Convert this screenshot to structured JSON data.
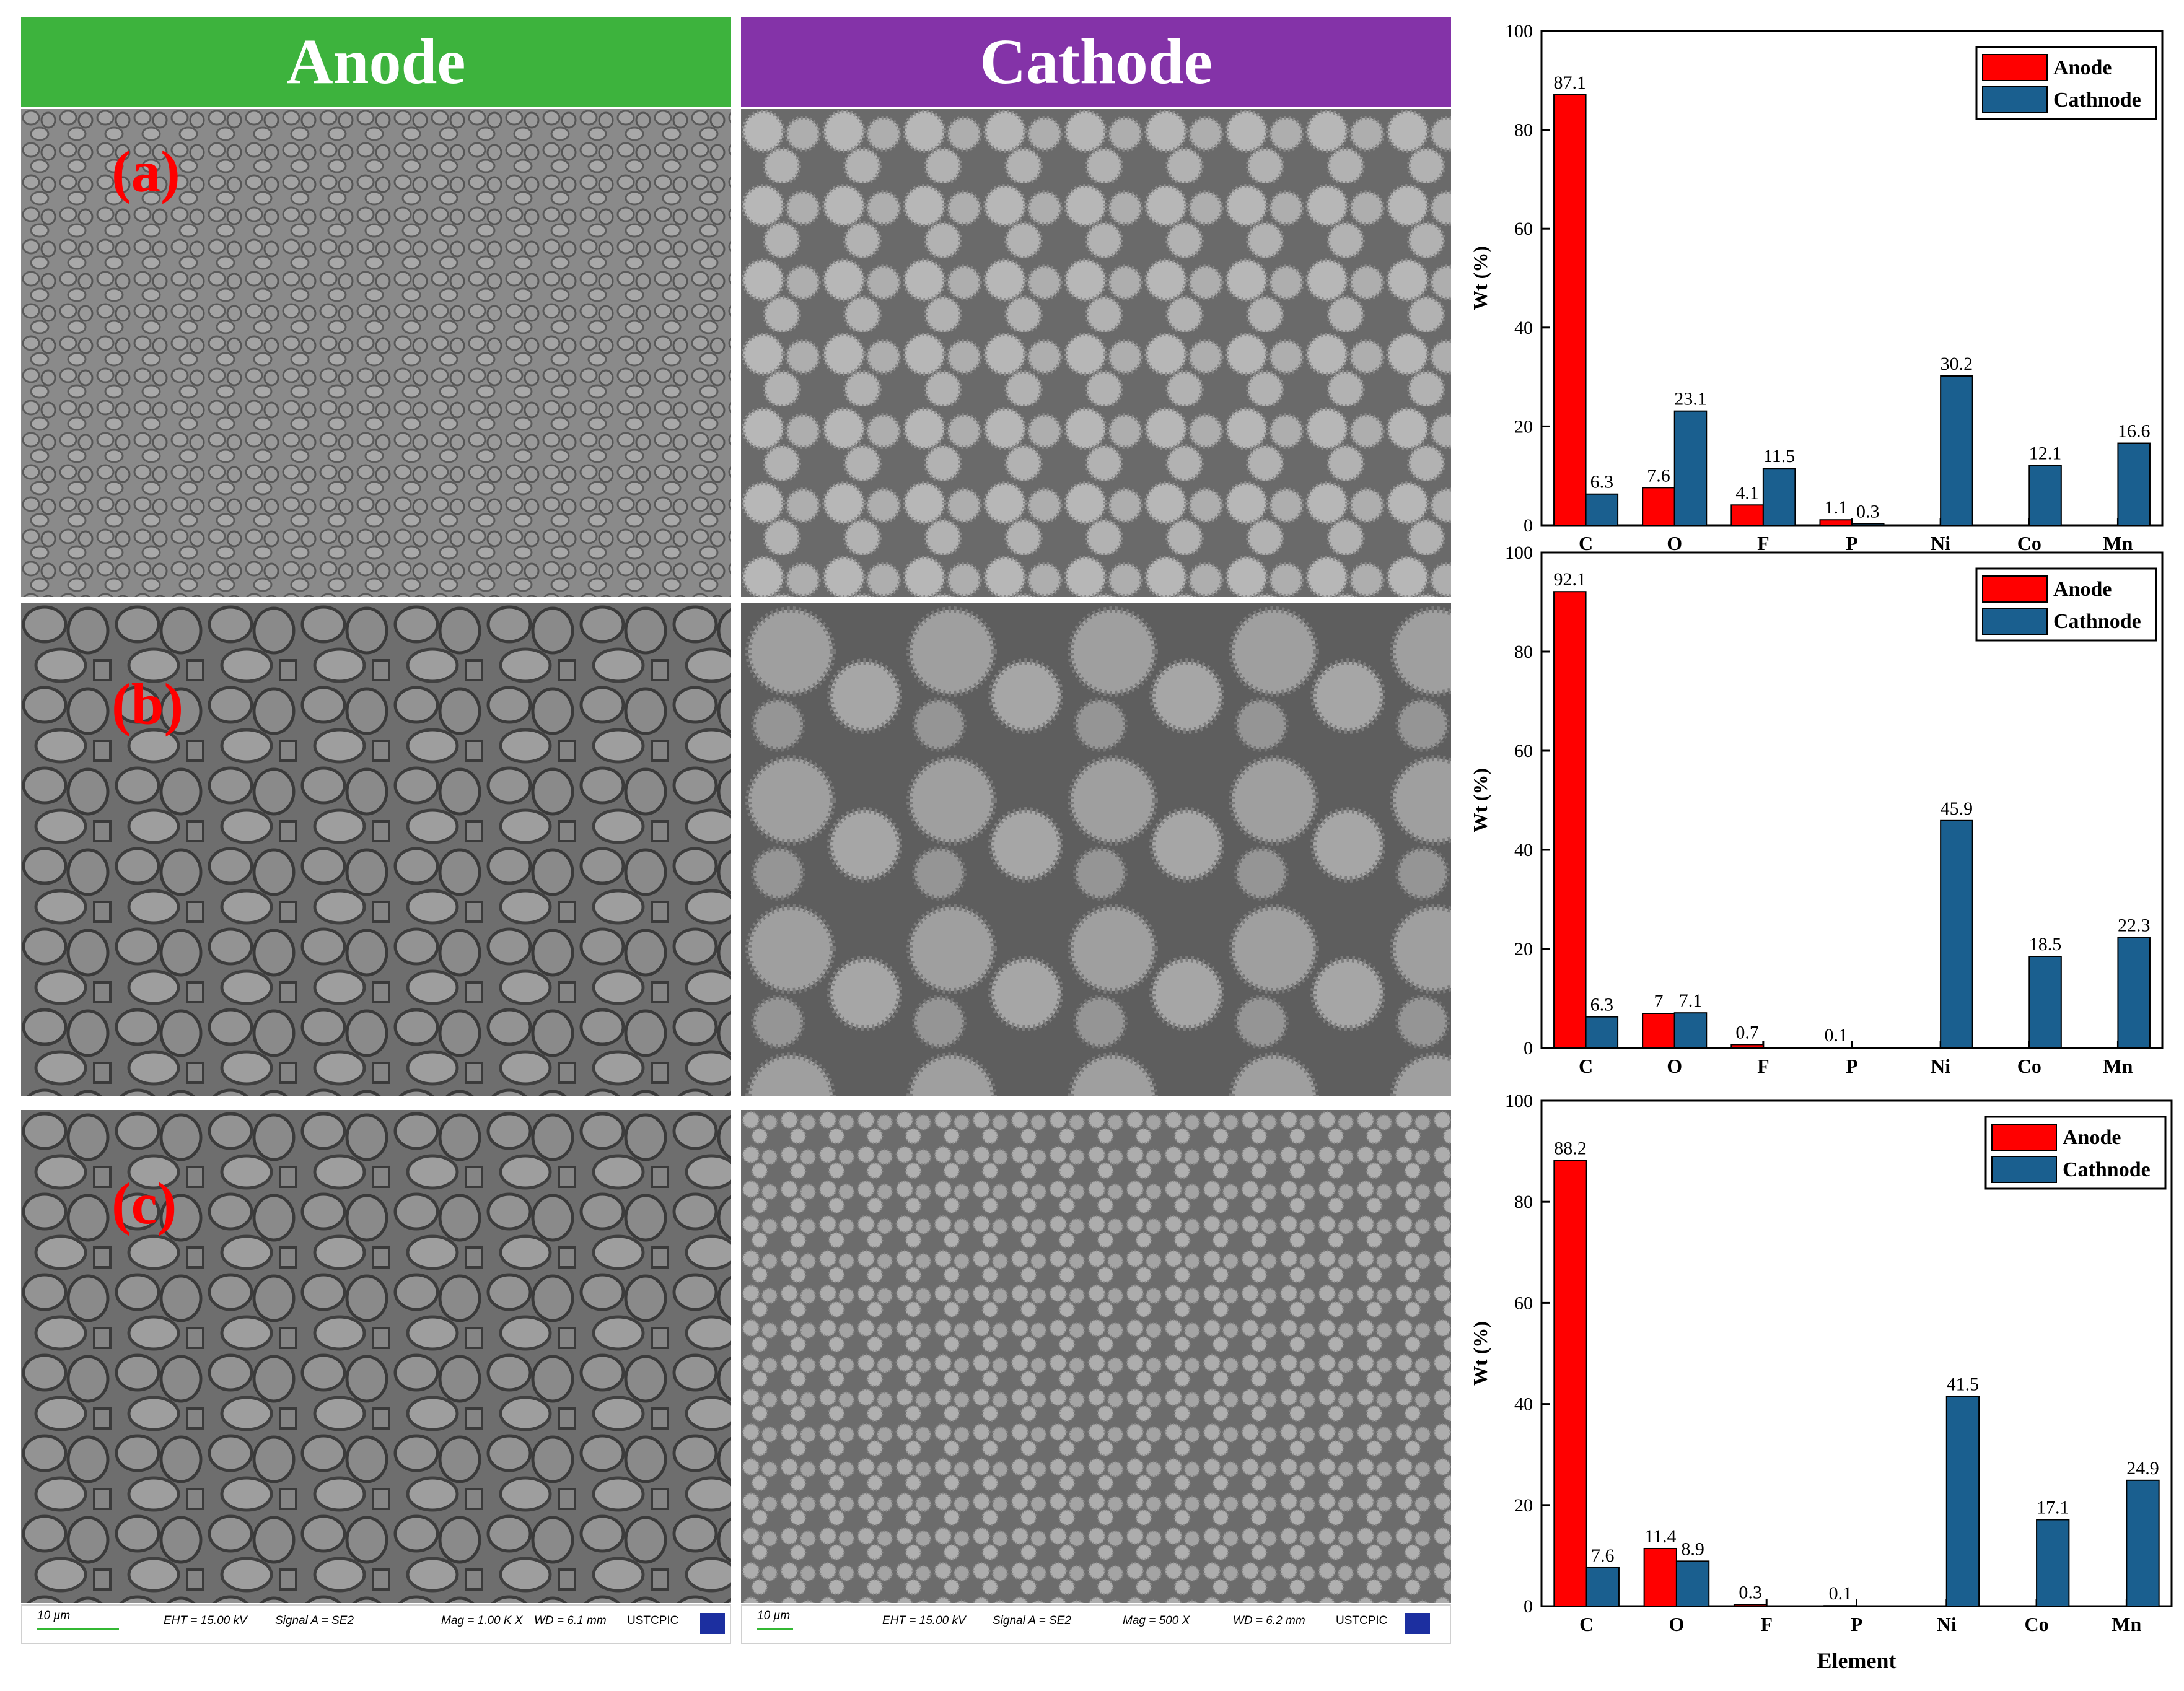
{
  "headers": {
    "anode": {
      "text": "Anode",
      "color": "#3db33d"
    },
    "cathode": {
      "text": "Cathode",
      "color": "#8433a8"
    }
  },
  "panel_labels": [
    "(a)",
    "(b)",
    "(c)"
  ],
  "sem_infobars": [
    {
      "scale": "10 µm",
      "eht": "EHT = 15.00 kV",
      "signal": "Signal A = SE2",
      "mag": "Mag =    1.00 K X",
      "wd": "WD =  6.1 mm",
      "org": "USTCPIC"
    },
    {
      "scale": "10 µm",
      "eht": "EHT = 15.00 kV",
      "signal": "Signal A = SE2",
      "mag": "Mag =    500 X",
      "wd": "WD =  6.2 mm",
      "org": "USTCPIC"
    }
  ],
  "colors": {
    "anode": "#ff0000",
    "cathode": "#1a5f8f"
  },
  "chart_data": [
    {
      "type": "bar",
      "categories": [
        "C",
        "O",
        "F",
        "P",
        "Ni",
        "Co",
        "Mn"
      ],
      "series": [
        {
          "name": "Anode",
          "values": [
            87.1,
            7.6,
            4.1,
            1.1,
            null,
            null,
            null
          ],
          "labels": [
            "87.1",
            "7.6",
            "4.1",
            "1.1",
            "",
            "",
            ""
          ]
        },
        {
          "name": "Cathnode",
          "values": [
            6.3,
            23.1,
            11.5,
            0.3,
            30.2,
            12.1,
            16.6
          ],
          "labels": [
            "6.3",
            "23.1",
            "11.5",
            "0.3",
            "30.2",
            "12.1",
            "16.6"
          ]
        }
      ],
      "ylabel": "Wt (%)",
      "xlabel": "",
      "ylim": [
        0,
        100
      ],
      "yticks": [
        "0",
        "20",
        "40",
        "60",
        "80",
        "100"
      ],
      "legend": "top-right"
    },
    {
      "type": "bar",
      "categories": [
        "C",
        "O",
        "F",
        "P",
        "Ni",
        "Co",
        "Mn"
      ],
      "series": [
        {
          "name": "Anode",
          "values": [
            92.1,
            7,
            0.7,
            0.1,
            null,
            null,
            null
          ],
          "labels": [
            "92.1",
            "7",
            "0.7",
            "0.1",
            "",
            "",
            ""
          ]
        },
        {
          "name": "Cathnode",
          "values": [
            6.3,
            7.1,
            null,
            null,
            45.9,
            18.5,
            22.3
          ],
          "labels": [
            "6.3",
            "7.1",
            "",
            "",
            "45.9",
            "18.5",
            "22.3"
          ]
        }
      ],
      "ylabel": "Wt (%)",
      "xlabel": "",
      "ylim": [
        0,
        100
      ],
      "yticks": [
        "0",
        "20",
        "40",
        "60",
        "80",
        "100"
      ],
      "legend": "top-right"
    },
    {
      "type": "bar",
      "categories": [
        "C",
        "O",
        "F",
        "P",
        "Ni",
        "Co",
        "Mn"
      ],
      "series": [
        {
          "name": "Anode",
          "values": [
            88.2,
            11.4,
            0.3,
            0.1,
            null,
            null,
            null
          ],
          "labels": [
            "88.2",
            "11.4",
            "0.3",
            "0.1",
            "",
            "",
            ""
          ]
        },
        {
          "name": "Cathnode",
          "values": [
            7.6,
            8.9,
            null,
            null,
            41.5,
            17.1,
            24.9
          ],
          "labels": [
            "7.6",
            "8.9",
            "",
            "",
            "41.5",
            "17.1",
            "24.9"
          ]
        }
      ],
      "ylabel": "Wt (%)",
      "xlabel": "Element",
      "ylim": [
        0,
        100
      ],
      "yticks": [
        "0",
        "20",
        "40",
        "60",
        "80",
        "100"
      ],
      "legend": "top-right"
    }
  ]
}
